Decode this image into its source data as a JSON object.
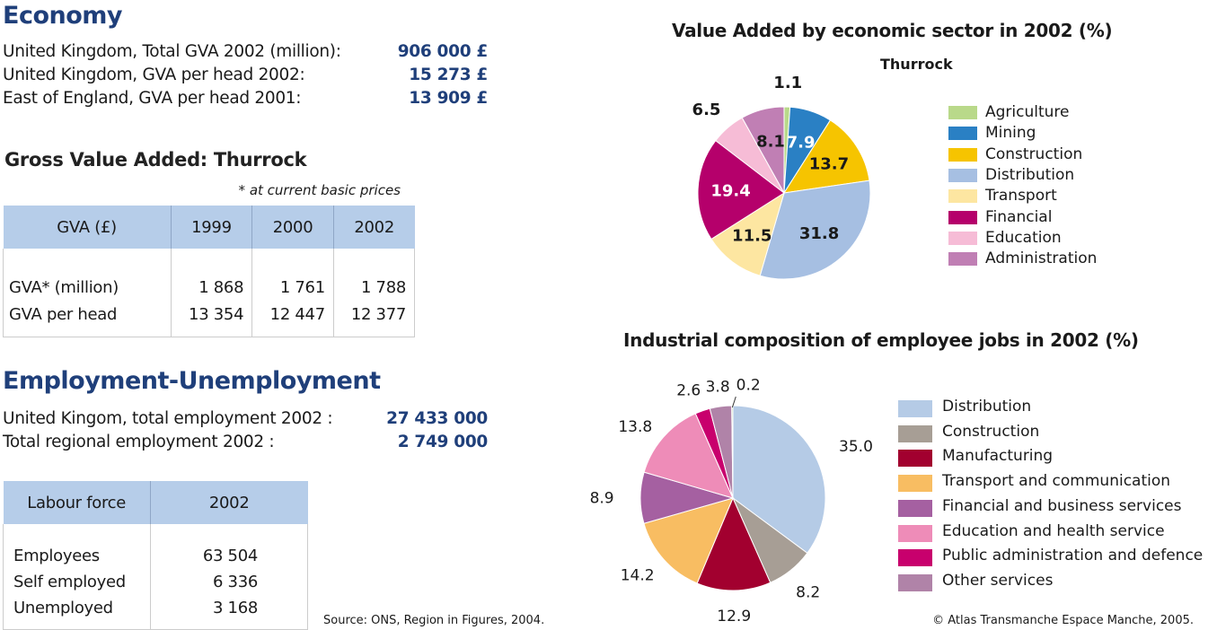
{
  "economy": {
    "title": "Economy",
    "rows": [
      {
        "label": "United Kingdom, Total GVA 2002 (million):",
        "value": "906 000 £"
      },
      {
        "label": "United Kingdom, GVA per head 2002:",
        "value": "15 273 £"
      },
      {
        "label": "East of England, GVA per head 2001:",
        "value": "13 909 £"
      }
    ]
  },
  "gva": {
    "title": "Gross Value Added: Thurrock",
    "note": "* at current basic prices",
    "headers": [
      "GVA (£)",
      "1999",
      "2000",
      "2002"
    ],
    "rows": [
      [
        "GVA* (million)",
        "1 868",
        "1 761",
        "1 788"
      ],
      [
        "GVA per head",
        "13 354",
        "12 447",
        "12 377"
      ]
    ]
  },
  "employment": {
    "title": "Employment-Unemployment",
    "rows": [
      {
        "label": "United Kingom, total employment 2002 :",
        "value": "27 433 000"
      },
      {
        "label": "Total regional employment 2002 :",
        "value": "2 749 000"
      }
    ]
  },
  "labour": {
    "headers": [
      "Labour force",
      "2002"
    ],
    "rows": [
      [
        "Employees",
        "63 504"
      ],
      [
        "Self employed",
        "6 336"
      ],
      [
        "Unemployed",
        "3 168"
      ]
    ]
  },
  "source": "Source: ONS, Region in Figures, 2004.",
  "copyright": "© Atlas Transmanche Espace Manche, 2005.",
  "chart_data": [
    {
      "type": "pie",
      "title": "Value Added by economic sector in 2002 (%)",
      "subtitle": "Thurrock",
      "legend_position": "right",
      "slices": [
        {
          "name": "Agriculture",
          "value": 1.1,
          "label": "1.1",
          "color": "#b9d98a"
        },
        {
          "name": "Mining",
          "value": 7.9,
          "label": "7.9",
          "color": "#2a80c4"
        },
        {
          "name": "Construction",
          "value": 13.7,
          "label": "13.7",
          "color": "#f6c400"
        },
        {
          "name": "Distribution",
          "value": 31.8,
          "label": "31.8",
          "color": "#a6bfe2"
        },
        {
          "name": "Transport",
          "value": 11.5,
          "label": "11.5",
          "color": "#fde6a1"
        },
        {
          "name": "Financial",
          "value": 19.4,
          "label": "19.4",
          "color": "#b5006b"
        },
        {
          "name": "Education",
          "value": 6.5,
          "label": "6.5",
          "color": "#f6bcd6"
        },
        {
          "name": "Administration",
          "value": 8.1,
          "label": "8.1",
          "color": "#c07fb4"
        }
      ]
    },
    {
      "type": "pie",
      "title": "Industrial composition of employee jobs in 2002 (%)",
      "legend_position": "right",
      "slices": [
        {
          "name": "Distribution",
          "value": 35.0,
          "label": "35.0",
          "color": "#b5cbe6"
        },
        {
          "name": "Construction",
          "value": 8.2,
          "label": "8.2",
          "color": "#a79e95"
        },
        {
          "name": "Manufacturing",
          "value": 12.9,
          "label": "12.9",
          "color": "#a2002f"
        },
        {
          "name": "Transport and communication",
          "value": 14.2,
          "label": "14.2",
          "color": "#f8bd62"
        },
        {
          "name": "Financial and business services",
          "value": 8.9,
          "label": "8.9",
          "color": "#a560a1"
        },
        {
          "name": "Education and health service",
          "value": 13.8,
          "label": "13.8",
          "color": "#ee8cb8"
        },
        {
          "name": "Public administration and defence",
          "value": 2.6,
          "label": "2.6",
          "color": "#c8006d"
        },
        {
          "name": "Other services",
          "value": 3.8,
          "label": "3.8",
          "color": "#b083a8"
        },
        {
          "name": "",
          "value": 0.2,
          "label": "0.2",
          "color": "#9bc27c"
        }
      ]
    }
  ]
}
